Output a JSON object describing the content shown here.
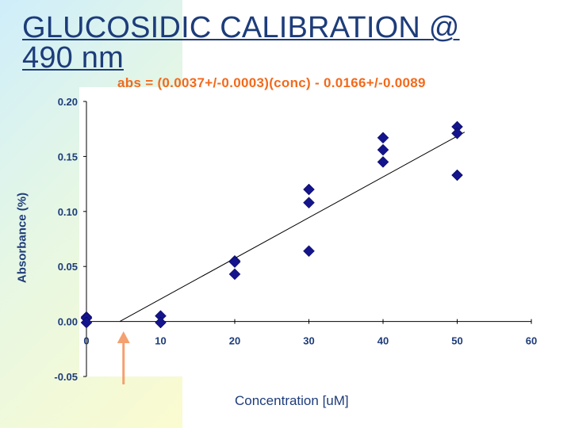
{
  "title_line1": "GLUCOSIDIC CALIBRATION @",
  "title_line2": "490 nm",
  "equation": "abs = (0.0037+/-0.0003)(conc) - 0.0166+/-0.0089",
  "colors": {
    "title": "#1d3c7a",
    "equation": "#f26a1b",
    "marker": "#14148c",
    "arrow": "#f4a070",
    "fit_line": "#000000"
  },
  "chart_data": {
    "type": "scatter",
    "xlabel": "Concentration [uM]",
    "ylabel": "Absorbance (%)",
    "xlim": [
      0,
      60
    ],
    "ylim": [
      -0.05,
      0.2
    ],
    "x_ticks": [
      "0",
      "10",
      "20",
      "30",
      "40",
      "50",
      "60"
    ],
    "y_ticks": [
      "0.20",
      "0.15",
      "0.10",
      "0.05",
      "0.00",
      "-0.05"
    ],
    "series": [
      {
        "marker": "diamond",
        "points": [
          [
            0,
            0.004
          ],
          [
            0,
            0.003
          ],
          [
            0,
            -0.001
          ],
          [
            10,
            0.005
          ],
          [
            10,
            -0.001
          ],
          [
            20,
            0.055
          ],
          [
            20,
            0.054
          ],
          [
            20,
            0.043
          ],
          [
            30,
            0.12
          ],
          [
            30,
            0.108
          ],
          [
            30,
            0.064
          ],
          [
            40,
            0.167
          ],
          [
            40,
            0.156
          ],
          [
            40,
            0.145
          ],
          [
            50,
            0.177
          ],
          [
            50,
            0.171
          ],
          [
            50,
            0.133
          ]
        ]
      }
    ],
    "fit": {
      "slope": 0.0037,
      "intercept": -0.0166,
      "x_range": [
        4.5,
        51
      ]
    },
    "arrow_at_x": 5
  }
}
